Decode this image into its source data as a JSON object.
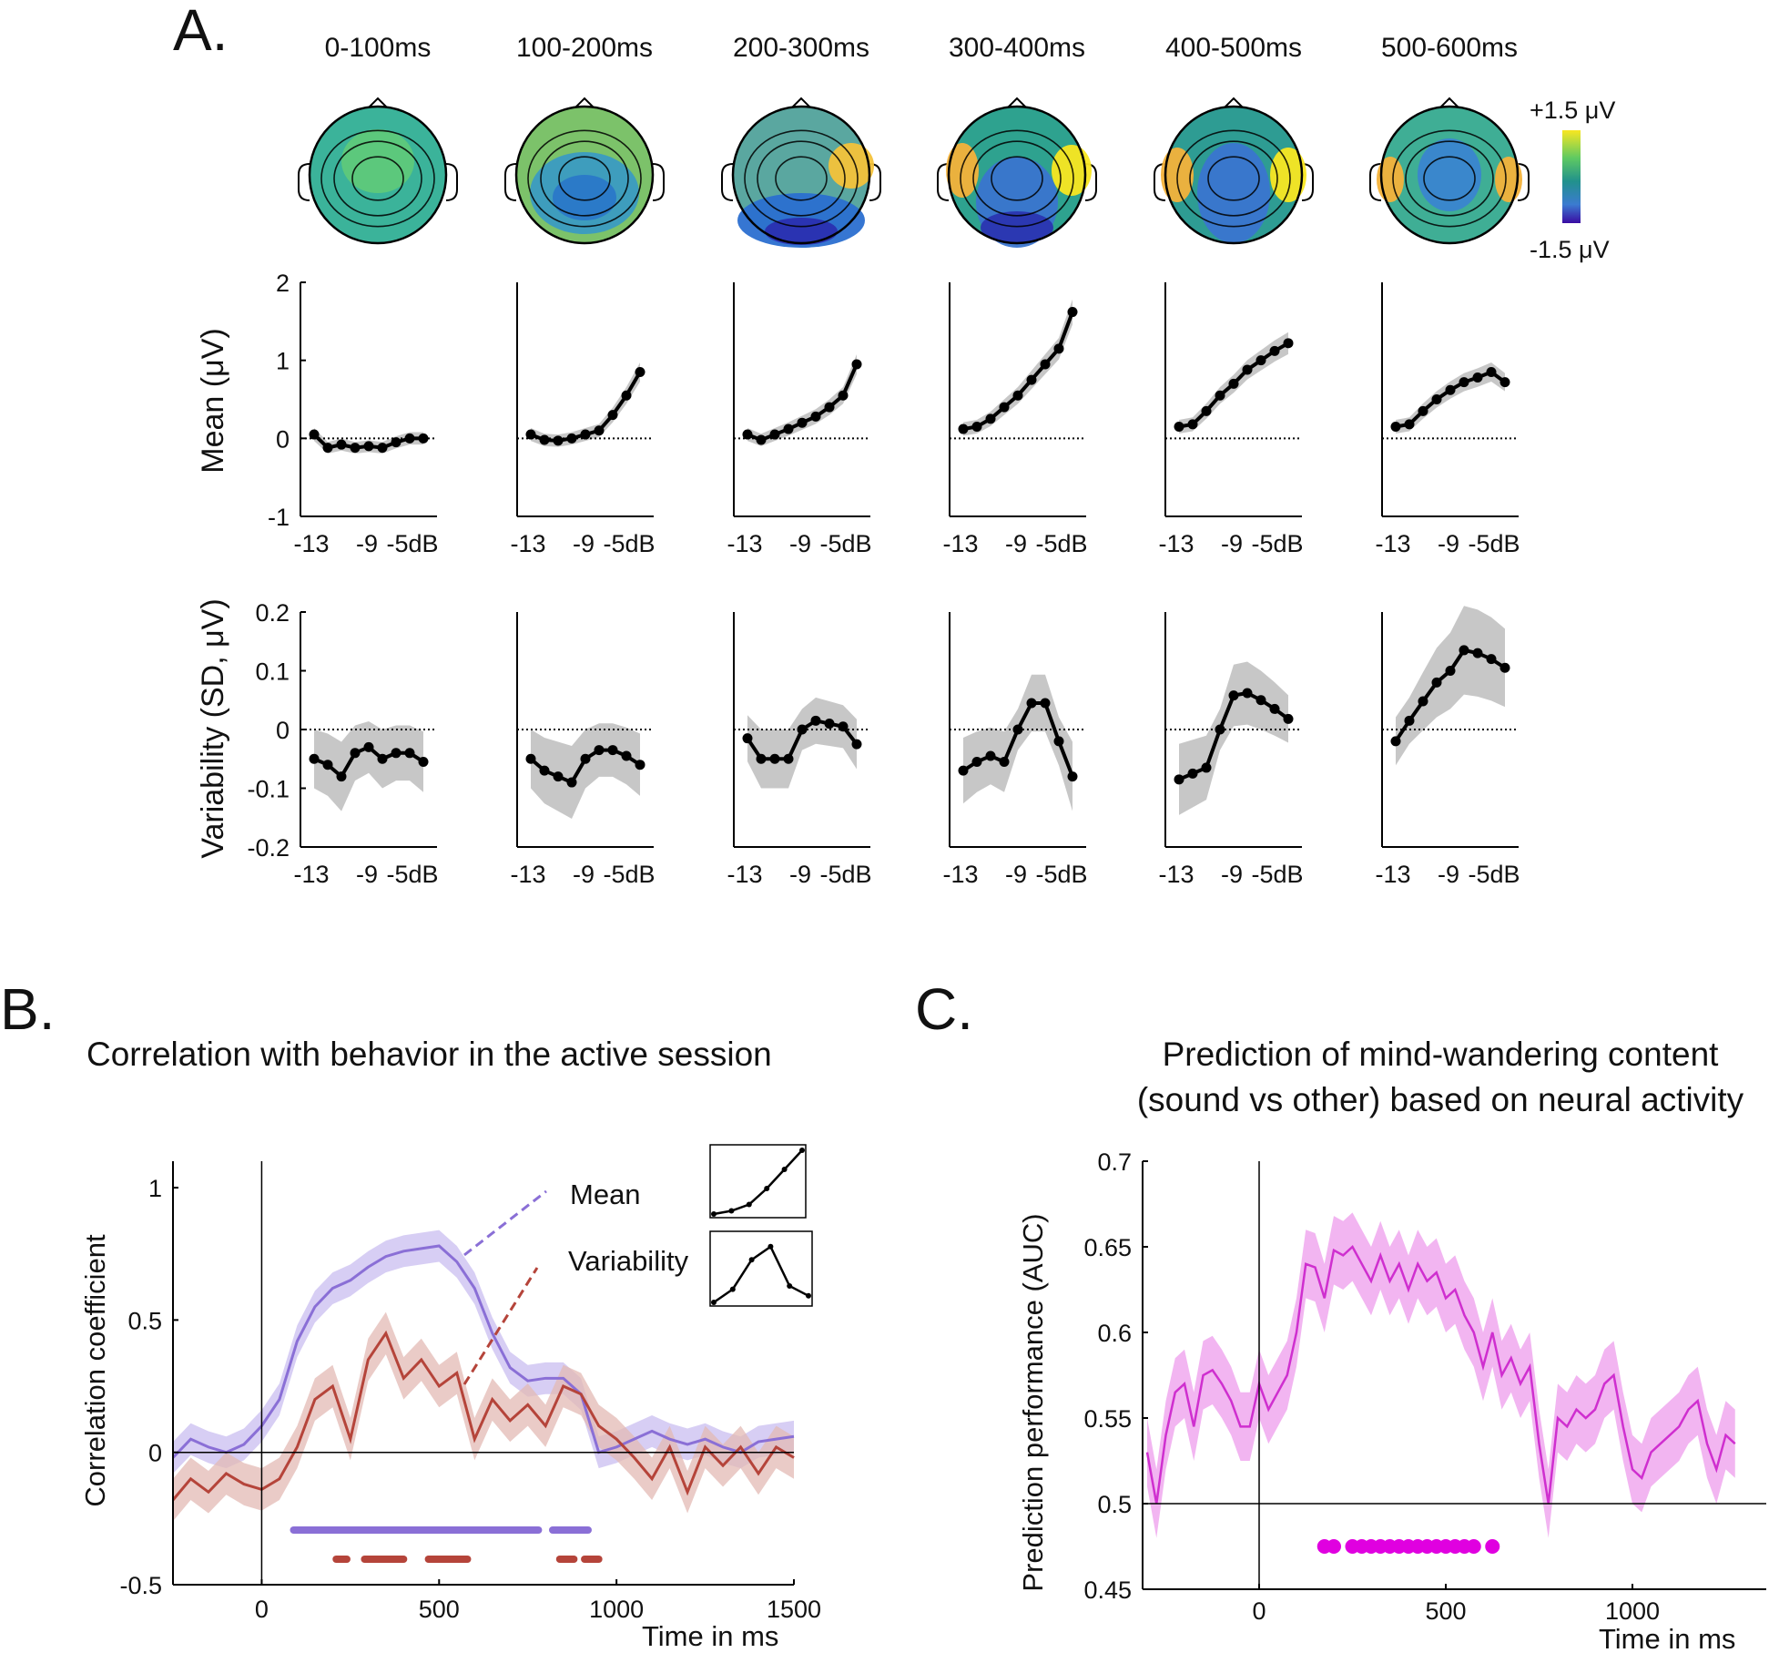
{
  "panel_a": {
    "letter": "A.",
    "windows": [
      "0-100ms",
      "100-200ms",
      "200-300ms",
      "300-400ms",
      "400-500ms",
      "500-600ms"
    ],
    "colorbar": {
      "max_label": "+1.5 μV",
      "min_label": "-1.5 μV",
      "colors": [
        "#f9e721",
        "#5ec962",
        "#21918c",
        "#3b528b",
        "#3a0ca3"
      ]
    },
    "mean_ylabel": "Mean  (μV)",
    "var_ylabel": "Variability (SD, μV)",
    "x_tick_labels": [
      "-13",
      "-9",
      "-5dB"
    ],
    "mean_y_ticks": [
      "2",
      "1",
      "0",
      "-1"
    ],
    "var_y_ticks": [
      "0.2",
      "0.1",
      "0",
      "-0.1",
      "-0.2"
    ]
  },
  "panel_b": {
    "letter": "B.",
    "title": "Correlation with behavior in the active session",
    "ylabel": "Correlation coefficient",
    "xlabel": "Time in ms",
    "x_ticks": [
      "0",
      "500",
      "1000",
      "1500"
    ],
    "y_ticks": [
      "1",
      "0.5",
      "0",
      "-0.5"
    ],
    "legend": [
      {
        "label": "Mean",
        "color": "#8a6fd6"
      },
      {
        "label": "Variability",
        "color": "#b5443a"
      }
    ]
  },
  "panel_c": {
    "letter": "C.",
    "title_line1": "Prediction of mind-wandering content",
    "title_line2": "(sound vs other) based on neural activity",
    "ylabel": "Prediction performance (AUC)",
    "xlabel": "Time in ms",
    "x_ticks": [
      "0",
      "500",
      "1000"
    ],
    "y_ticks": [
      "0.7",
      "0.65",
      "0.6",
      "0.55",
      "0.5",
      "0.45"
    ]
  },
  "chart_data": [
    {
      "type": "line",
      "panel": "A-mean",
      "window": "0-100ms",
      "ylim": [
        -1,
        2
      ],
      "x": [
        -13,
        -12,
        -11,
        -10,
        -9,
        -8,
        -7,
        -6,
        -5
      ],
      "values": [
        0.05,
        -0.12,
        -0.08,
        -0.12,
        -0.1,
        -0.12,
        -0.05,
        0.0,
        0.0
      ]
    },
    {
      "type": "line",
      "panel": "A-mean",
      "window": "100-200ms",
      "ylim": [
        -1,
        2
      ],
      "x": [
        -13,
        -12,
        -11,
        -10,
        -9,
        -8,
        -7,
        -6,
        -5
      ],
      "values": [
        0.05,
        -0.02,
        -0.03,
        0.0,
        0.05,
        0.1,
        0.3,
        0.55,
        0.85
      ]
    },
    {
      "type": "line",
      "panel": "A-mean",
      "window": "200-300ms",
      "ylim": [
        -1,
        2
      ],
      "x": [
        -13,
        -12,
        -11,
        -10,
        -9,
        -8,
        -7,
        -6,
        -5
      ],
      "values": [
        0.05,
        -0.02,
        0.05,
        0.12,
        0.2,
        0.28,
        0.4,
        0.55,
        0.95
      ]
    },
    {
      "type": "line",
      "panel": "A-mean",
      "window": "300-400ms",
      "ylim": [
        -1,
        2
      ],
      "x": [
        -13,
        -12,
        -11,
        -10,
        -9,
        -8,
        -7,
        -6,
        -5
      ],
      "values": [
        0.12,
        0.15,
        0.25,
        0.4,
        0.55,
        0.75,
        0.95,
        1.15,
        1.62
      ]
    },
    {
      "type": "line",
      "panel": "A-mean",
      "window": "400-500ms",
      "ylim": [
        -1,
        2
      ],
      "x": [
        -13,
        -12,
        -11,
        -10,
        -9,
        -8,
        -7,
        -6,
        -5
      ],
      "values": [
        0.15,
        0.18,
        0.35,
        0.55,
        0.7,
        0.88,
        1.0,
        1.12,
        1.22
      ]
    },
    {
      "type": "line",
      "panel": "A-mean",
      "window": "500-600ms",
      "ylim": [
        -1,
        2
      ],
      "x": [
        -13,
        -12,
        -11,
        -10,
        -9,
        -8,
        -7,
        -6,
        -5
      ],
      "values": [
        0.15,
        0.18,
        0.35,
        0.5,
        0.62,
        0.72,
        0.78,
        0.85,
        0.72
      ]
    },
    {
      "type": "line",
      "panel": "A-var",
      "window": "0-100ms",
      "ylim": [
        -0.2,
        0.2
      ],
      "x": [
        -13,
        -12,
        -11,
        -10,
        -9,
        -8,
        -7,
        -6,
        -5
      ],
      "values": [
        -0.05,
        -0.06,
        -0.08,
        -0.04,
        -0.03,
        -0.05,
        -0.04,
        -0.04,
        -0.055
      ]
    },
    {
      "type": "line",
      "panel": "A-var",
      "window": "100-200ms",
      "ylim": [
        -0.2,
        0.2
      ],
      "x": [
        -13,
        -12,
        -11,
        -10,
        -9,
        -8,
        -7,
        -6,
        -5
      ],
      "values": [
        -0.05,
        -0.07,
        -0.08,
        -0.09,
        -0.05,
        -0.035,
        -0.035,
        -0.045,
        -0.06
      ]
    },
    {
      "type": "line",
      "panel": "A-var",
      "window": "200-300ms",
      "ylim": [
        -0.2,
        0.2
      ],
      "x": [
        -13,
        -12,
        -11,
        -10,
        -9,
        -8,
        -7,
        -6,
        -5
      ],
      "values": [
        -0.015,
        -0.05,
        -0.05,
        -0.05,
        0.0,
        0.015,
        0.01,
        0.005,
        -0.025
      ]
    },
    {
      "type": "line",
      "panel": "A-var",
      "window": "300-400ms",
      "ylim": [
        -0.2,
        0.2
      ],
      "x": [
        -13,
        -12,
        -11,
        -10,
        -9,
        -8,
        -7,
        -6,
        -5
      ],
      "values": [
        -0.07,
        -0.055,
        -0.045,
        -0.055,
        0.0,
        0.045,
        0.045,
        -0.02,
        -0.08
      ]
    },
    {
      "type": "line",
      "panel": "A-var",
      "window": "400-500ms",
      "ylim": [
        -0.2,
        0.2
      ],
      "x": [
        -13,
        -12,
        -11,
        -10,
        -9,
        -8,
        -7,
        -6,
        -5
      ],
      "values": [
        -0.085,
        -0.075,
        -0.065,
        0.0,
        0.058,
        0.062,
        0.05,
        0.035,
        0.018
      ]
    },
    {
      "type": "line",
      "panel": "A-var",
      "window": "500-600ms",
      "ylim": [
        -0.2,
        0.2
      ],
      "x": [
        -13,
        -12,
        -11,
        -10,
        -9,
        -8,
        -7,
        -6,
        -5
      ],
      "values": [
        -0.02,
        0.015,
        0.048,
        0.08,
        0.1,
        0.135,
        0.13,
        0.12,
        0.105
      ]
    },
    {
      "type": "line",
      "panel": "B",
      "xlim": [
        -250,
        1500
      ],
      "ylim": [
        -0.5,
        1.1
      ],
      "series": [
        {
          "name": "Mean",
          "x": [
            -250,
            -200,
            -150,
            -100,
            -50,
            0,
            50,
            100,
            150,
            200,
            250,
            300,
            350,
            400,
            450,
            500,
            550,
            600,
            650,
            700,
            750,
            800,
            850,
            900,
            950,
            1000,
            1050,
            1100,
            1150,
            1200,
            1250,
            1300,
            1350,
            1400,
            1450,
            1500
          ],
          "values": [
            -0.02,
            0.05,
            0.02,
            0.0,
            0.03,
            0.1,
            0.2,
            0.42,
            0.55,
            0.62,
            0.65,
            0.7,
            0.74,
            0.76,
            0.77,
            0.78,
            0.72,
            0.62,
            0.45,
            0.32,
            0.27,
            0.28,
            0.28,
            0.22,
            0.0,
            0.02,
            0.05,
            0.08,
            0.05,
            0.03,
            0.05,
            0.02,
            0.0,
            0.04,
            0.05,
            0.06
          ],
          "band": 0.06,
          "significant": [
            [
              90,
              780
            ],
            [
              820,
              920
            ]
          ]
        },
        {
          "name": "Variability",
          "x": [
            -250,
            -200,
            -150,
            -100,
            -50,
            0,
            50,
            100,
            150,
            200,
            250,
            300,
            350,
            400,
            450,
            500,
            550,
            600,
            650,
            700,
            750,
            800,
            850,
            900,
            950,
            1000,
            1050,
            1100,
            1150,
            1200,
            1250,
            1300,
            1350,
            1400,
            1450,
            1500
          ],
          "values": [
            -0.18,
            -0.1,
            -0.15,
            -0.08,
            -0.12,
            -0.14,
            -0.1,
            0.02,
            0.2,
            0.25,
            0.05,
            0.35,
            0.45,
            0.28,
            0.35,
            0.25,
            0.3,
            0.05,
            0.2,
            0.12,
            0.18,
            0.1,
            0.25,
            0.22,
            0.1,
            0.05,
            -0.02,
            -0.1,
            0.02,
            -0.15,
            0.02,
            -0.05,
            0.02,
            -0.08,
            0.02,
            -0.02
          ],
          "band": 0.08,
          "significant": [
            [
              210,
              240
            ],
            [
              290,
              400
            ],
            [
              470,
              580
            ],
            [
              840,
              880
            ],
            [
              910,
              950
            ]
          ]
        }
      ],
      "inset_mean": [
        0,
        0.05,
        0.15,
        0.4,
        0.7,
        1.0
      ],
      "inset_variability": [
        0,
        0.2,
        0.65,
        0.85,
        0.25,
        0.1
      ]
    },
    {
      "type": "line",
      "panel": "C",
      "xlim": [
        -300,
        1300
      ],
      "ylim": [
        0.45,
        0.7
      ],
      "series": [
        {
          "name": "",
          "x": [
            -300,
            -275,
            -250,
            -225,
            -200,
            -175,
            -150,
            -125,
            -100,
            -75,
            -50,
            -25,
            0,
            25,
            50,
            75,
            100,
            125,
            150,
            175,
            200,
            225,
            250,
            275,
            300,
            325,
            350,
            375,
            400,
            425,
            450,
            475,
            500,
            525,
            550,
            575,
            600,
            625,
            650,
            675,
            700,
            725,
            750,
            775,
            800,
            825,
            850,
            875,
            900,
            925,
            950,
            975,
            1000,
            1025,
            1050,
            1075,
            1100,
            1125,
            1150,
            1175,
            1200,
            1225,
            1250,
            1275
          ],
          "values": [
            0.53,
            0.5,
            0.54,
            0.565,
            0.57,
            0.545,
            0.575,
            0.578,
            0.57,
            0.56,
            0.545,
            0.545,
            0.57,
            0.555,
            0.565,
            0.575,
            0.6,
            0.64,
            0.638,
            0.62,
            0.648,
            0.645,
            0.65,
            0.64,
            0.63,
            0.645,
            0.63,
            0.64,
            0.625,
            0.64,
            0.63,
            0.635,
            0.62,
            0.625,
            0.61,
            0.6,
            0.58,
            0.6,
            0.575,
            0.585,
            0.57,
            0.58,
            0.535,
            0.5,
            0.55,
            0.545,
            0.555,
            0.55,
            0.555,
            0.57,
            0.575,
            0.545,
            0.52,
            0.515,
            0.53,
            0.535,
            0.54,
            0.545,
            0.555,
            0.56,
            0.535,
            0.52,
            0.54,
            0.535
          ],
          "band": 0.02,
          "color": "#cf2fcf"
        }
      ],
      "significant_x": [
        175,
        200,
        250,
        275,
        300,
        325,
        350,
        375,
        400,
        425,
        450,
        475,
        500,
        525,
        550,
        575,
        625
      ]
    }
  ]
}
